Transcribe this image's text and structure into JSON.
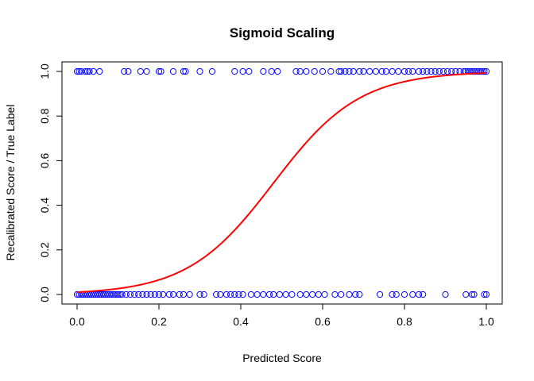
{
  "chart_data": {
    "type": "scatter",
    "title": "Sigmoid Scaling",
    "xlabel": "Predicted Score",
    "ylabel": "Recalibrated Score / True Label",
    "xlim": [
      0,
      1
    ],
    "ylim": [
      0,
      1
    ],
    "x_ticks": [
      "0.0",
      "0.2",
      "0.4",
      "0.6",
      "0.8",
      "1.0"
    ],
    "y_ticks": [
      "0.0",
      "0.2",
      "0.4",
      "0.6",
      "0.8",
      "1.0"
    ],
    "grid": false,
    "colors": {
      "points": "#0000ff",
      "curve": "#ff0000"
    },
    "series": [
      {
        "type": "scatter",
        "marker": "open-circle",
        "points_label_1": [
          [
            0.0,
            1
          ],
          [
            0.005,
            1
          ],
          [
            0.01,
            1
          ],
          [
            0.02,
            1
          ],
          [
            0.025,
            1
          ],
          [
            0.03,
            1
          ],
          [
            0.04,
            1
          ],
          [
            0.055,
            1
          ],
          [
            0.115,
            1
          ],
          [
            0.125,
            1
          ],
          [
            0.155,
            1
          ],
          [
            0.17,
            1
          ],
          [
            0.2,
            1
          ],
          [
            0.205,
            1
          ],
          [
            0.235,
            1
          ],
          [
            0.26,
            1
          ],
          [
            0.265,
            1
          ],
          [
            0.3,
            1
          ],
          [
            0.33,
            1
          ],
          [
            0.385,
            1
          ],
          [
            0.405,
            1
          ],
          [
            0.42,
            1
          ],
          [
            0.455,
            1
          ],
          [
            0.475,
            1
          ],
          [
            0.49,
            1
          ],
          [
            0.535,
            1
          ],
          [
            0.545,
            1
          ],
          [
            0.56,
            1
          ],
          [
            0.58,
            1
          ],
          [
            0.6,
            1
          ],
          [
            0.62,
            1
          ],
          [
            0.64,
            1
          ],
          [
            0.645,
            1
          ],
          [
            0.655,
            1
          ],
          [
            0.665,
            1
          ],
          [
            0.675,
            1
          ],
          [
            0.69,
            1
          ],
          [
            0.7,
            1
          ],
          [
            0.715,
            1
          ],
          [
            0.73,
            1
          ],
          [
            0.745,
            1
          ],
          [
            0.755,
            1
          ],
          [
            0.77,
            1
          ],
          [
            0.785,
            1
          ],
          [
            0.8,
            1
          ],
          [
            0.81,
            1
          ],
          [
            0.82,
            1
          ],
          [
            0.835,
            1
          ],
          [
            0.845,
            1
          ],
          [
            0.855,
            1
          ],
          [
            0.865,
            1
          ],
          [
            0.875,
            1
          ],
          [
            0.885,
            1
          ],
          [
            0.895,
            1
          ],
          [
            0.905,
            1
          ],
          [
            0.915,
            1
          ],
          [
            0.925,
            1
          ],
          [
            0.935,
            1
          ],
          [
            0.945,
            1
          ],
          [
            0.95,
            1
          ],
          [
            0.955,
            1
          ],
          [
            0.96,
            1
          ],
          [
            0.965,
            1
          ],
          [
            0.97,
            1
          ],
          [
            0.975,
            1
          ],
          [
            0.98,
            1
          ],
          [
            0.985,
            1
          ],
          [
            0.99,
            1
          ],
          [
            0.995,
            1
          ],
          [
            1.0,
            1
          ]
        ],
        "points_label_0": [
          [
            0.0,
            0
          ],
          [
            0.005,
            0
          ],
          [
            0.01,
            0
          ],
          [
            0.015,
            0
          ],
          [
            0.02,
            0
          ],
          [
            0.025,
            0
          ],
          [
            0.03,
            0
          ],
          [
            0.035,
            0
          ],
          [
            0.04,
            0
          ],
          [
            0.045,
            0
          ],
          [
            0.05,
            0
          ],
          [
            0.055,
            0
          ],
          [
            0.06,
            0
          ],
          [
            0.065,
            0
          ],
          [
            0.07,
            0
          ],
          [
            0.075,
            0
          ],
          [
            0.08,
            0
          ],
          [
            0.085,
            0
          ],
          [
            0.09,
            0
          ],
          [
            0.095,
            0
          ],
          [
            0.1,
            0
          ],
          [
            0.105,
            0
          ],
          [
            0.11,
            0
          ],
          [
            0.12,
            0
          ],
          [
            0.13,
            0
          ],
          [
            0.14,
            0
          ],
          [
            0.15,
            0
          ],
          [
            0.16,
            0
          ],
          [
            0.17,
            0
          ],
          [
            0.18,
            0
          ],
          [
            0.19,
            0
          ],
          [
            0.2,
            0
          ],
          [
            0.21,
            0
          ],
          [
            0.225,
            0
          ],
          [
            0.235,
            0
          ],
          [
            0.25,
            0
          ],
          [
            0.26,
            0
          ],
          [
            0.275,
            0
          ],
          [
            0.3,
            0
          ],
          [
            0.31,
            0
          ],
          [
            0.34,
            0
          ],
          [
            0.35,
            0
          ],
          [
            0.365,
            0
          ],
          [
            0.375,
            0
          ],
          [
            0.385,
            0
          ],
          [
            0.395,
            0
          ],
          [
            0.405,
            0
          ],
          [
            0.425,
            0
          ],
          [
            0.44,
            0
          ],
          [
            0.455,
            0
          ],
          [
            0.47,
            0
          ],
          [
            0.48,
            0
          ],
          [
            0.495,
            0
          ],
          [
            0.51,
            0
          ],
          [
            0.525,
            0
          ],
          [
            0.545,
            0
          ],
          [
            0.56,
            0
          ],
          [
            0.575,
            0
          ],
          [
            0.59,
            0
          ],
          [
            0.605,
            0
          ],
          [
            0.63,
            0
          ],
          [
            0.645,
            0
          ],
          [
            0.665,
            0
          ],
          [
            0.68,
            0
          ],
          [
            0.69,
            0
          ],
          [
            0.74,
            0
          ],
          [
            0.77,
            0
          ],
          [
            0.78,
            0
          ],
          [
            0.8,
            0
          ],
          [
            0.82,
            0
          ],
          [
            0.835,
            0
          ],
          [
            0.845,
            0
          ],
          [
            0.9,
            0
          ],
          [
            0.95,
            0
          ],
          [
            0.965,
            0
          ],
          [
            0.97,
            0
          ],
          [
            0.995,
            0
          ],
          [
            1.0,
            0
          ]
        ]
      },
      {
        "type": "line",
        "function": "sigmoid",
        "slope": 9.5,
        "midpoint": 0.48,
        "x_range": [
          0,
          1
        ]
      }
    ]
  }
}
